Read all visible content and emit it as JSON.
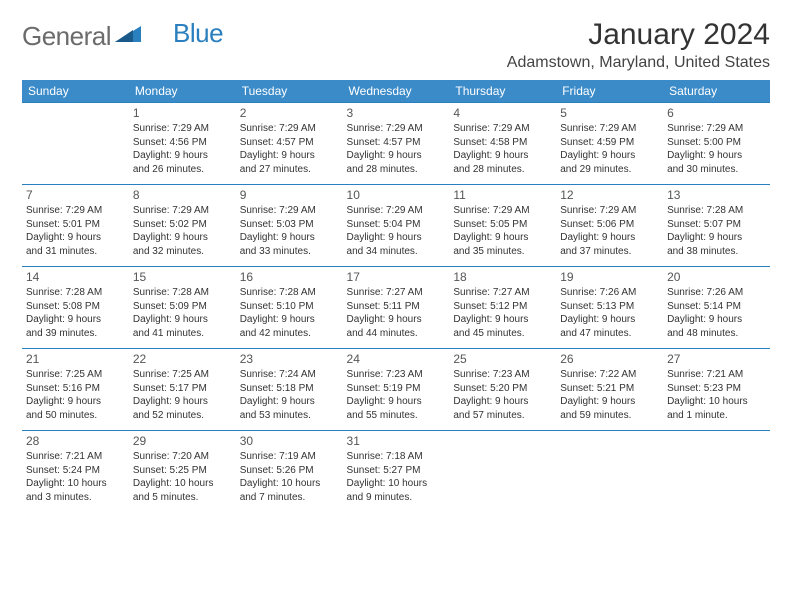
{
  "logo": {
    "word1": "General",
    "word2": "Blue"
  },
  "title": "January 2024",
  "location": "Adamstown, Maryland, United States",
  "colors": {
    "header_bg": "#3b8bc9",
    "header_fg": "#ffffff",
    "border": "#2a7fbf",
    "logo_gray": "#6b6b6b",
    "logo_blue": "#2a7fbf",
    "text": "#333333"
  },
  "day_headers": [
    "Sunday",
    "Monday",
    "Tuesday",
    "Wednesday",
    "Thursday",
    "Friday",
    "Saturday"
  ],
  "weeks": [
    [
      null,
      {
        "n": "1",
        "sr": "Sunrise: 7:29 AM",
        "ss": "Sunset: 4:56 PM",
        "d1": "Daylight: 9 hours",
        "d2": "and 26 minutes."
      },
      {
        "n": "2",
        "sr": "Sunrise: 7:29 AM",
        "ss": "Sunset: 4:57 PM",
        "d1": "Daylight: 9 hours",
        "d2": "and 27 minutes."
      },
      {
        "n": "3",
        "sr": "Sunrise: 7:29 AM",
        "ss": "Sunset: 4:57 PM",
        "d1": "Daylight: 9 hours",
        "d2": "and 28 minutes."
      },
      {
        "n": "4",
        "sr": "Sunrise: 7:29 AM",
        "ss": "Sunset: 4:58 PM",
        "d1": "Daylight: 9 hours",
        "d2": "and 28 minutes."
      },
      {
        "n": "5",
        "sr": "Sunrise: 7:29 AM",
        "ss": "Sunset: 4:59 PM",
        "d1": "Daylight: 9 hours",
        "d2": "and 29 minutes."
      },
      {
        "n": "6",
        "sr": "Sunrise: 7:29 AM",
        "ss": "Sunset: 5:00 PM",
        "d1": "Daylight: 9 hours",
        "d2": "and 30 minutes."
      }
    ],
    [
      {
        "n": "7",
        "sr": "Sunrise: 7:29 AM",
        "ss": "Sunset: 5:01 PM",
        "d1": "Daylight: 9 hours",
        "d2": "and 31 minutes."
      },
      {
        "n": "8",
        "sr": "Sunrise: 7:29 AM",
        "ss": "Sunset: 5:02 PM",
        "d1": "Daylight: 9 hours",
        "d2": "and 32 minutes."
      },
      {
        "n": "9",
        "sr": "Sunrise: 7:29 AM",
        "ss": "Sunset: 5:03 PM",
        "d1": "Daylight: 9 hours",
        "d2": "and 33 minutes."
      },
      {
        "n": "10",
        "sr": "Sunrise: 7:29 AM",
        "ss": "Sunset: 5:04 PM",
        "d1": "Daylight: 9 hours",
        "d2": "and 34 minutes."
      },
      {
        "n": "11",
        "sr": "Sunrise: 7:29 AM",
        "ss": "Sunset: 5:05 PM",
        "d1": "Daylight: 9 hours",
        "d2": "and 35 minutes."
      },
      {
        "n": "12",
        "sr": "Sunrise: 7:29 AM",
        "ss": "Sunset: 5:06 PM",
        "d1": "Daylight: 9 hours",
        "d2": "and 37 minutes."
      },
      {
        "n": "13",
        "sr": "Sunrise: 7:28 AM",
        "ss": "Sunset: 5:07 PM",
        "d1": "Daylight: 9 hours",
        "d2": "and 38 minutes."
      }
    ],
    [
      {
        "n": "14",
        "sr": "Sunrise: 7:28 AM",
        "ss": "Sunset: 5:08 PM",
        "d1": "Daylight: 9 hours",
        "d2": "and 39 minutes."
      },
      {
        "n": "15",
        "sr": "Sunrise: 7:28 AM",
        "ss": "Sunset: 5:09 PM",
        "d1": "Daylight: 9 hours",
        "d2": "and 41 minutes."
      },
      {
        "n": "16",
        "sr": "Sunrise: 7:28 AM",
        "ss": "Sunset: 5:10 PM",
        "d1": "Daylight: 9 hours",
        "d2": "and 42 minutes."
      },
      {
        "n": "17",
        "sr": "Sunrise: 7:27 AM",
        "ss": "Sunset: 5:11 PM",
        "d1": "Daylight: 9 hours",
        "d2": "and 44 minutes."
      },
      {
        "n": "18",
        "sr": "Sunrise: 7:27 AM",
        "ss": "Sunset: 5:12 PM",
        "d1": "Daylight: 9 hours",
        "d2": "and 45 minutes."
      },
      {
        "n": "19",
        "sr": "Sunrise: 7:26 AM",
        "ss": "Sunset: 5:13 PM",
        "d1": "Daylight: 9 hours",
        "d2": "and 47 minutes."
      },
      {
        "n": "20",
        "sr": "Sunrise: 7:26 AM",
        "ss": "Sunset: 5:14 PM",
        "d1": "Daylight: 9 hours",
        "d2": "and 48 minutes."
      }
    ],
    [
      {
        "n": "21",
        "sr": "Sunrise: 7:25 AM",
        "ss": "Sunset: 5:16 PM",
        "d1": "Daylight: 9 hours",
        "d2": "and 50 minutes."
      },
      {
        "n": "22",
        "sr": "Sunrise: 7:25 AM",
        "ss": "Sunset: 5:17 PM",
        "d1": "Daylight: 9 hours",
        "d2": "and 52 minutes."
      },
      {
        "n": "23",
        "sr": "Sunrise: 7:24 AM",
        "ss": "Sunset: 5:18 PM",
        "d1": "Daylight: 9 hours",
        "d2": "and 53 minutes."
      },
      {
        "n": "24",
        "sr": "Sunrise: 7:23 AM",
        "ss": "Sunset: 5:19 PM",
        "d1": "Daylight: 9 hours",
        "d2": "and 55 minutes."
      },
      {
        "n": "25",
        "sr": "Sunrise: 7:23 AM",
        "ss": "Sunset: 5:20 PM",
        "d1": "Daylight: 9 hours",
        "d2": "and 57 minutes."
      },
      {
        "n": "26",
        "sr": "Sunrise: 7:22 AM",
        "ss": "Sunset: 5:21 PM",
        "d1": "Daylight: 9 hours",
        "d2": "and 59 minutes."
      },
      {
        "n": "27",
        "sr": "Sunrise: 7:21 AM",
        "ss": "Sunset: 5:23 PM",
        "d1": "Daylight: 10 hours",
        "d2": "and 1 minute."
      }
    ],
    [
      {
        "n": "28",
        "sr": "Sunrise: 7:21 AM",
        "ss": "Sunset: 5:24 PM",
        "d1": "Daylight: 10 hours",
        "d2": "and 3 minutes."
      },
      {
        "n": "29",
        "sr": "Sunrise: 7:20 AM",
        "ss": "Sunset: 5:25 PM",
        "d1": "Daylight: 10 hours",
        "d2": "and 5 minutes."
      },
      {
        "n": "30",
        "sr": "Sunrise: 7:19 AM",
        "ss": "Sunset: 5:26 PM",
        "d1": "Daylight: 10 hours",
        "d2": "and 7 minutes."
      },
      {
        "n": "31",
        "sr": "Sunrise: 7:18 AM",
        "ss": "Sunset: 5:27 PM",
        "d1": "Daylight: 10 hours",
        "d2": "and 9 minutes."
      },
      null,
      null,
      null
    ]
  ]
}
